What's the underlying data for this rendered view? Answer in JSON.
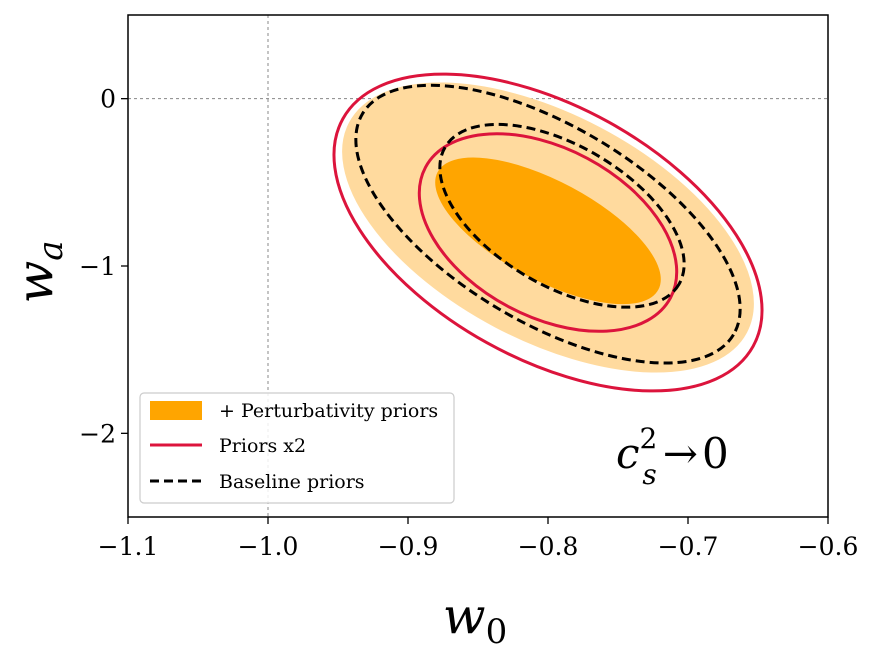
{
  "chart_data": {
    "type": "contour",
    "xlabel_base": "w",
    "xlabel_sub": "0",
    "ylabel_base": "w",
    "ylabel_sub": "a",
    "xlim": [
      -1.1,
      -0.6
    ],
    "ylim": [
      -2.5,
      0.5
    ],
    "xticks": [
      -1.1,
      -1.0,
      -0.9,
      -0.8,
      -0.7,
      -0.6
    ],
    "xtick_labels": [
      "−1.1",
      "−1.0",
      "−0.9",
      "−0.8",
      "−0.7",
      "−0.6"
    ],
    "yticks": [
      0,
      -1,
      -2
    ],
    "ytick_labels": [
      "0",
      "−1",
      "−2"
    ],
    "reference_lines": {
      "x": -1.0,
      "y": 0
    },
    "annotation": {
      "base": "c",
      "sup": "2",
      "sub": "s",
      "arrow": "→",
      "value": "0"
    },
    "legend": {
      "position": "lower-left",
      "entries": [
        {
          "label": "+ Perturbativity priors",
          "style": "filled",
          "color": "#FFA500"
        },
        {
          "label": "Priors x2",
          "style": "solid",
          "color": "#DC143C"
        },
        {
          "label": "Baseline priors",
          "style": "dashed",
          "color": "#000000"
        }
      ]
    },
    "series": [
      {
        "name": "+ Perturbativity priors",
        "style": "filled",
        "colors": {
          "inner": "#FFA500",
          "outer": "#FFDA9E"
        },
        "contours": [
          {
            "level": "68%",
            "center": [
              -0.8,
              -0.79
            ],
            "endpoints": [
              [
                -0.875,
                -0.4
              ],
              [
                -0.718,
                -1.1
              ]
            ],
            "half_width": 0.035
          },
          {
            "level": "95%",
            "center": [
              -0.8,
              -0.77
            ],
            "endpoints": [
              [
                -0.94,
                -0.15
              ],
              [
                -0.657,
                -1.4
              ]
            ],
            "half_width": 0.08
          }
        ]
      },
      {
        "name": "Priors x2",
        "style": "solid",
        "color": "#DC143C",
        "contours": [
          {
            "level": "68%",
            "center": [
              -0.8,
              -0.8
            ],
            "endpoints": [
              [
                -0.885,
                -0.4
              ],
              [
                -0.71,
                -1.18
              ]
            ],
            "half_width": 0.06
          },
          {
            "level": "95%",
            "center": [
              -0.8,
              -0.8
            ],
            "endpoints": [
              [
                -0.943,
                -0.13
              ],
              [
                -0.65,
                -1.49
              ]
            ],
            "half_width": 0.09
          }
        ]
      },
      {
        "name": "Baseline priors",
        "style": "dashed",
        "color": "#000000",
        "contours": [
          {
            "level": "68%",
            "center": [
              -0.79,
              -0.7
            ],
            "endpoints": [
              [
                -0.885,
                -0.3
              ],
              [
                -0.718,
                -1.12
              ]
            ],
            "half_width": 0.05
          },
          {
            "level": "95%",
            "center": [
              -0.8,
              -0.75
            ],
            "endpoints": [
              [
                -0.93,
                -0.1
              ],
              [
                -0.665,
                -1.42
              ]
            ],
            "half_width": 0.07
          }
        ]
      }
    ]
  }
}
